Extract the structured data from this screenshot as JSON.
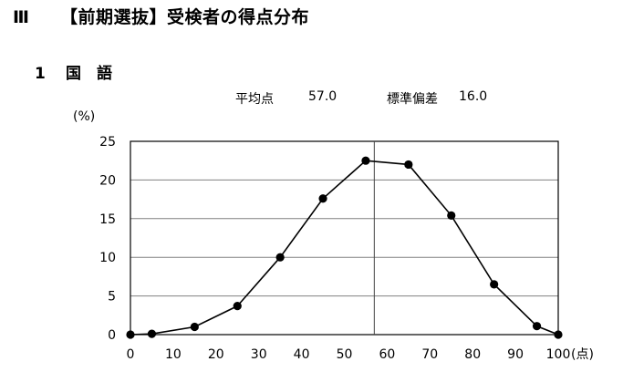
{
  "header": {
    "section_number": "Ⅲ",
    "section_title": "【前期選抜】受検者の得点分布"
  },
  "subject": {
    "number": "1",
    "name": "国　語"
  },
  "stats": {
    "mean_label": "平均点",
    "mean_value": "57.0",
    "sd_label": "標準偏差",
    "sd_value": "16.0"
  },
  "chart_data": {
    "type": "line",
    "ylabel": "(%)",
    "xlabel": "(点)",
    "xlim": [
      0,
      100
    ],
    "ylim": [
      0,
      25
    ],
    "x_ticks": [
      0,
      10,
      20,
      30,
      40,
      50,
      60,
      70,
      80,
      90,
      100
    ],
    "y_ticks": [
      0,
      5,
      10,
      15,
      20,
      25
    ],
    "grid": "horizontal",
    "mean_marker_x": 57.0,
    "series": [
      {
        "x": [
          0,
          5,
          15,
          25,
          35,
          45,
          55,
          65,
          75,
          85,
          95,
          100
        ],
        "values": [
          0.0,
          0.1,
          1.0,
          3.7,
          10.0,
          17.6,
          22.5,
          22.0,
          15.4,
          6.5,
          1.1,
          0.0
        ]
      }
    ],
    "colors": {
      "line": "#000000",
      "marker": "#000000",
      "grid": "#808080"
    }
  }
}
